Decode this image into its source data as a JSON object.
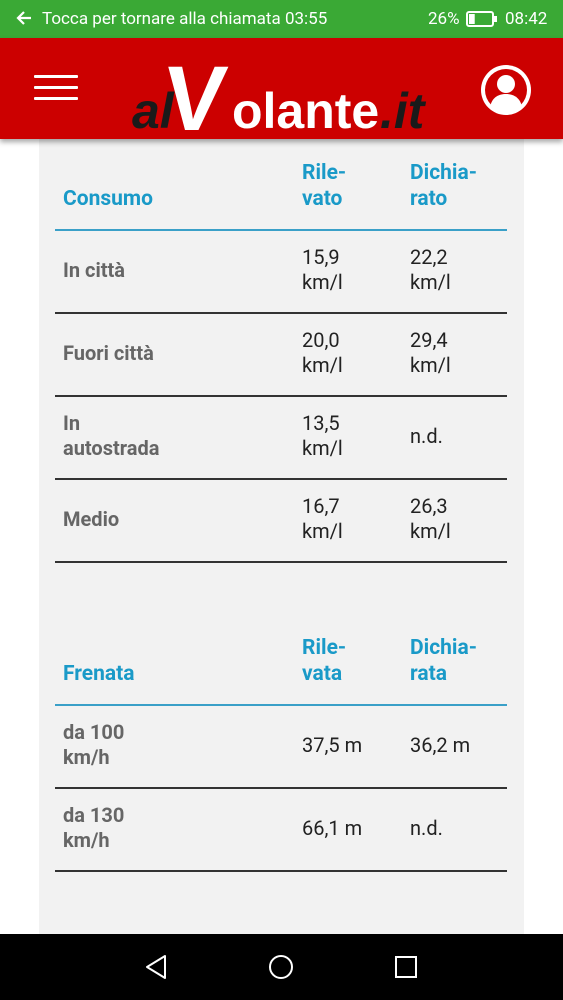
{
  "status_bar": {
    "call_text": "Tocca per tornare alla chiamata 03:55",
    "battery": "26%",
    "battery_level": 0.26,
    "time": "08:42"
  },
  "header": {
    "logo_text_prefix": "al",
    "logo_text_v": "V",
    "logo_text_main": "olante",
    "logo_text_suffix": ".it",
    "menu_icon": "hamburger-icon",
    "user_icon": "user-avatar-icon",
    "colors": {
      "bar": "#cc0000",
      "logo_dark": "#1a1a1a"
    }
  },
  "consumo": {
    "label": "Consumo",
    "col1": "Rile-\nvato",
    "col2": "Dichia-\nrato",
    "rows": [
      {
        "label": "In città",
        "v1": "15,9\nkm/l",
        "v2": "22,2\nkm/l"
      },
      {
        "label": "Fuori città",
        "v1": "20,0\nkm/l",
        "v2": "29,4\nkm/l"
      },
      {
        "label": "In\nautostrada",
        "v1": "13,5\nkm/l",
        "v2": "n.d."
      },
      {
        "label": "Medio",
        "v1": "16,7\nkm/l",
        "v2": "26,3\nkm/l"
      }
    ]
  },
  "frenata": {
    "label": "Frenata",
    "col1": "Rile-\nvata",
    "col2": "Dichia-\nrata",
    "rows": [
      {
        "label": "da 100\nkm/h",
        "v1": "37,5 m",
        "v2": "36,2 m"
      },
      {
        "label": "da 130\nkm/h",
        "v1": "66,1 m",
        "v2": "n.d."
      }
    ]
  },
  "nav": {
    "back_icon": "nav-back-icon",
    "home_icon": "nav-home-icon",
    "recents_icon": "nav-recents-icon"
  },
  "colors": {
    "status_bar": "#3aa935",
    "accent": "#1a9ac8",
    "card": "#f2f2f2"
  }
}
